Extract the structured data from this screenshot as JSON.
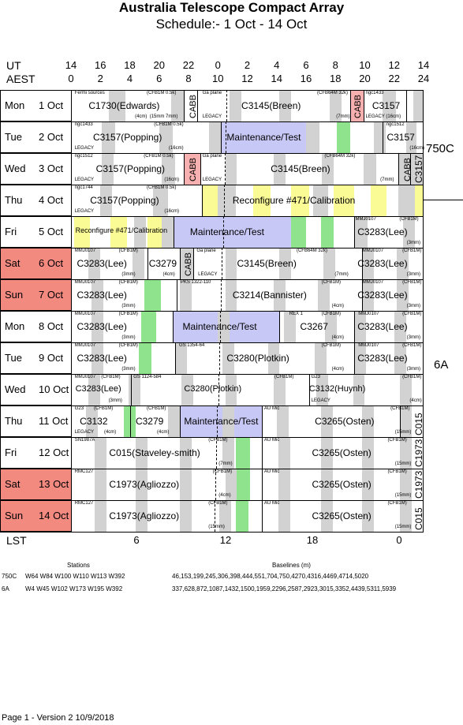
{
  "title": "Australia Telescope Compact Array",
  "subtitle": "Schedule:- 1  Oct - 14 Oct",
  "ut_label": "UT",
  "aest_label": "AEST",
  "lst_label": "LST",
  "ut_ticks": [
    "14",
    "16",
    "18",
    "20",
    "22",
    "0",
    "2",
    "4",
    "6",
    "8",
    "10",
    "12",
    "14"
  ],
  "aest_ticks": [
    "0",
    "2",
    "4",
    "6",
    "8",
    "10",
    "12",
    "14",
    "16",
    "18",
    "20",
    "22",
    "24"
  ],
  "lst_ticks": [
    "6",
    "12",
    "18",
    "0"
  ],
  "days": [
    {
      "dow": "Mon",
      "date": "1  Oct",
      "weekend": false
    },
    {
      "dow": "Tue",
      "date": "2  Oct",
      "weekend": false
    },
    {
      "dow": "Wed",
      "date": "3  Oct",
      "weekend": false
    },
    {
      "dow": "Thu",
      "date": "4  Oct",
      "weekend": false
    },
    {
      "dow": "Fri",
      "date": "5  Oct",
      "weekend": false
    },
    {
      "dow": "Sat",
      "date": "6  Oct",
      "weekend": true
    },
    {
      "dow": "Sun",
      "date": "7  Oct",
      "weekend": true
    },
    {
      "dow": "Mon",
      "date": "8  Oct",
      "weekend": false
    },
    {
      "dow": "Tue",
      "date": "9  Oct",
      "weekend": false
    },
    {
      "dow": "Wed",
      "date": "10 Oct",
      "weekend": false
    },
    {
      "dow": "Thu",
      "date": "11 Oct",
      "weekend": false
    },
    {
      "dow": "Fri",
      "date": "12 Oct",
      "weekend": false
    },
    {
      "dow": "Sat",
      "date": "13 Oct",
      "weekend": true
    },
    {
      "dow": "Sun",
      "date": "14 Oct",
      "weekend": true
    }
  ],
  "configs": [
    "750C",
    "6A"
  ],
  "side_labels": {
    "c3157": "C3157",
    "c015a": "C015",
    "c1973a": "C1973",
    "c1973b": "C1973",
    "c015b": "C015"
  },
  "cabb": "CABB",
  "projects": {
    "r0a": "C1730(Edwards)",
    "r0b": "C3145(Breen)",
    "r0c": "C3157",
    "r1a": "C3157(Popping)",
    "r1b": "Maintenance/Test",
    "r1c": "C3157",
    "r2a": "C3157(Popping)",
    "r2b": "C3145(Breen)",
    "r3a": "C3157(Popping)",
    "r3b": "Reconfigure #471/Calibration",
    "r4a": "Reconfigure #471/Calibration",
    "r4b": "Maintenance/Test",
    "r4c": "C3283(Lee)",
    "r5a": "C3283(Lee)",
    "r5b": "C3279",
    "r5c": "C3145(Breen)",
    "r5d": "C3283(Lee)",
    "r6a": "C3283(Lee)",
    "r6b": "C3214(Bannister)",
    "r6c": "C3283(Lee)",
    "r7a": "C3283(Lee)",
    "r7b": "Maintenance/Test",
    "r7c": "C3267",
    "r7d": "C3283(Lee)",
    "r8a": "C3283(Lee)",
    "r8b": "C3280(Plotkin)",
    "r8c": "C3283(Lee)",
    "r9a": "C3283(Lee)",
    "r9b": "C3280(Plotkin)",
    "r9c": "C3132(Huynh)",
    "r10a": "C3132",
    "r10b": "C3279",
    "r10c": "Maintenance/Test",
    "r10d": "C3265(Osten)",
    "r11a": "C015(Staveley-smith)",
    "r11b": "C3265(Osten)",
    "r12a": "C1973(Agliozzo)",
    "r12b": "C3265(Osten)",
    "r13a": "C1973(Agliozzo)",
    "r13b": "C3265(Osten)"
  },
  "notes": {
    "n0a": "Fermi sources",
    "n0b": "(CFB1M 0.5k)",
    "n0c": "Ga plane",
    "n0d": "(CFB64M 32k)",
    "n0e": "ngc1433",
    "n0f": "(4cm)",
    "n0g": "(15mm 7mm)",
    "n0h": "(7mm)",
    "n0i": "LEGACY",
    "n0j": "LEGACY (16cm)",
    "n1a": "ngc1433",
    "n1b": "(CFB1M 0.5k)",
    "n1c": "ngc1512",
    "n1d": "LEGACY",
    "n1e": "(16cm)",
    "n1f": "(16cm)",
    "n2a": "ngc1512",
    "n2b": "(CFB1M 0.5k)",
    "n2c": "Ga plane",
    "n2d": "(CFB64M 32k)",
    "n2e": "LEGACY",
    "n2f": "(16cm)",
    "n2g": "LEGACY",
    "n2h": "(7mm)",
    "n3a": "ngc1744",
    "n3b": "(CFB1M 0.5k)",
    "n3c": "LEGACY",
    "n3d": "(16cm)",
    "n4a": "MMJ0107",
    "n4b": "(CFB1M)",
    "n4c": "(3mm)",
    "n5a": "MMJ0107",
    "n5b": "(CFB1M)",
    "n5c": "Ga plane",
    "n5d": "(CFB64M 32k)",
    "n5e": "MMJ0107",
    "n5f": "(CFB1M)",
    "n5g": "(3mm)",
    "n5h": "(4cm)",
    "n5i": "LEGACY",
    "n5j": "(7mm)",
    "n5k": "(3mm)",
    "n6a": "MMJ0107",
    "n6b": "(CFB1M)",
    "n6c": "PKS 1322-110",
    "n6d": "(CFB1M)",
    "n6e": "MMJ0107",
    "n6f": "(CFB1M)",
    "n6g": "(3mm)",
    "n6h": "(4cm)",
    "n6i": "(3mm)",
    "n7a": "MMJ0107",
    "n7b": "(CFB1M)",
    "n7c": "REX 1",
    "n7d": "(CFB1M)",
    "n7e": "MMJ0107",
    "n7f": "(CFB1M)",
    "n7g": "(3mm)",
    "n7h": "(4cm)",
    "n7i": "(3mm)",
    "n8a": "MMJ0107",
    "n8b": "(CFB1M)",
    "n8c": "GS 1354-64",
    "n8d": "(CFB1M)",
    "n8e": "MMJ0107",
    "n8f": "(CFB1M)",
    "n8g": "(3mm)",
    "n8h": "(4cm)",
    "n8i": "(3mm)",
    "n9a": "MMJ0107",
    "n9b": "(CFB1M)",
    "n9c": "GS 1124-584",
    "n9d": "(CFB1M)",
    "n9e": "G23",
    "n9f": "(CFB1M)",
    "n9g": "(3mm)",
    "n9h": "LEGACY",
    "n9i": "(4cm)",
    "n10a": "G23",
    "n10b": "(CFB1M)",
    "n10c": "(CFB1M)",
    "n10d": "AU Mic",
    "n10e": "(CFB1M)",
    "n10f": "LEGACY",
    "n10g": "(4cm)",
    "n10h": "(4cm)",
    "n10i": "(15mm)",
    "n11a": "SN1987A",
    "n11b": "(CFB1M)",
    "n11c": "AU Mic",
    "n11d": "(CFB1M)",
    "n11e": "(7mm)",
    "n11f": "(15mm)",
    "n12a": "RMC127",
    "n12b": "(CFB1M)",
    "n12c": "AU Mic",
    "n12d": "(CFB1M)",
    "n12e": "(4cm)",
    "n12f": "(15mm)",
    "n13a": "RMC127",
    "n13b": "(CFB1M)",
    "n13c": "AU Mic",
    "n13d": "(CFB1M)",
    "n13e": "(15mm)",
    "n13f": "(15mm)"
  },
  "footer": {
    "stations_label": "Stations",
    "baselines_label": "Baselines (m)",
    "cfg1": "750C",
    "cfg1_stations": "W64 W84 W100 W110 W113 W392",
    "cfg1_baselines": "46,153,199,245,306,398,444,551,704,750,4270,4316,4469,4714,5020",
    "cfg2": "6A",
    "cfg2_stations": "W4 W45 W102 W173 W195 W392",
    "cfg2_baselines": "337,628,872,1087,1432,1500,1959,2296,2587,2923,3015,3352,4439,5311,5939",
    "page": "Page 1 - Version 2  10/9/2018"
  }
}
